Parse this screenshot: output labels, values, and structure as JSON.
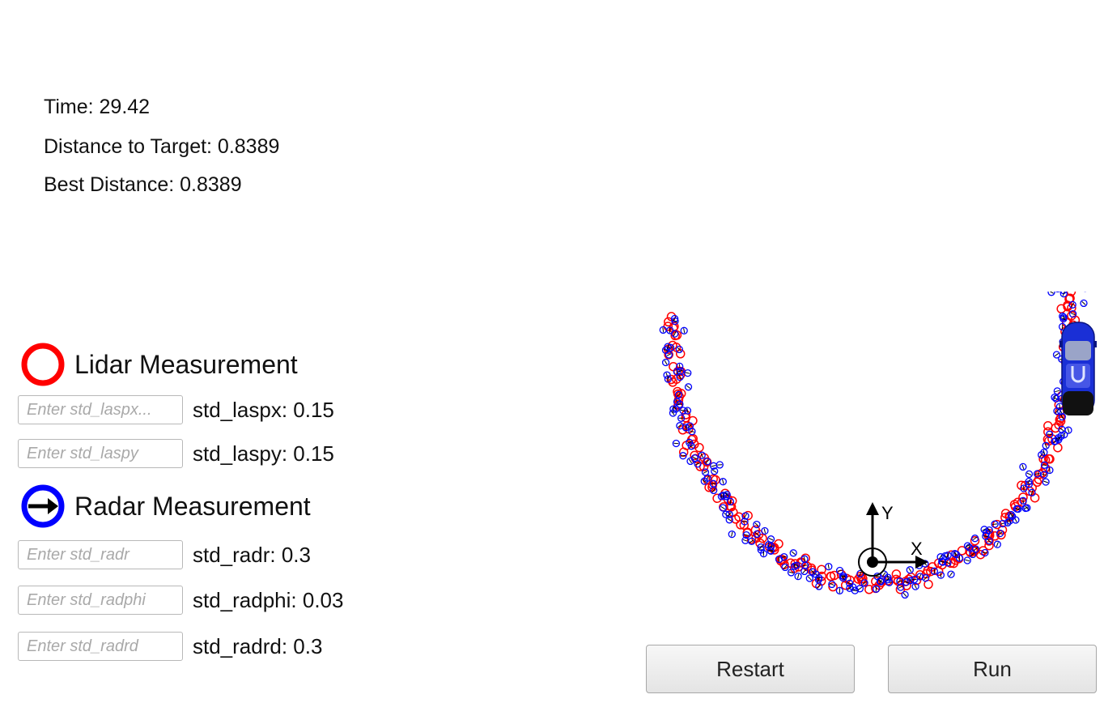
{
  "stats": {
    "time": "Time: 29.42",
    "distance": "Distance to Target: 0.8389",
    "best": "Best Distance: 0.8389"
  },
  "lidar": {
    "title": "Lidar Measurement",
    "color": "#ff0000",
    "fields": [
      {
        "placeholder": "Enter std_laspx...",
        "value_label": "std_laspx: 0.15"
      },
      {
        "placeholder": "Enter std_laspy",
        "value_label": "std_laspy: 0.15"
      }
    ]
  },
  "radar": {
    "title": "Radar Measurement",
    "color": "#0000ff",
    "fields": [
      {
        "placeholder": "Enter std_radr",
        "value_label": "std_radr: 0.3"
      },
      {
        "placeholder": "Enter std_radphi",
        "value_label": "std_radphi: 0.03"
      },
      {
        "placeholder": "Enter std_radrd",
        "value_label": "std_radrd: 0.3"
      }
    ]
  },
  "axes": {
    "x_label": "X",
    "y_label": "Y"
  },
  "buttons": {
    "restart": "Restart",
    "run": "Run"
  },
  "colors": {
    "lidar": "#ff0000",
    "radar": "#0000ff",
    "car": "#1a2fd6"
  },
  "icons": {
    "lidar": "red-ring-icon",
    "radar": "blue-ring-arrow-icon",
    "car": "car-icon"
  }
}
